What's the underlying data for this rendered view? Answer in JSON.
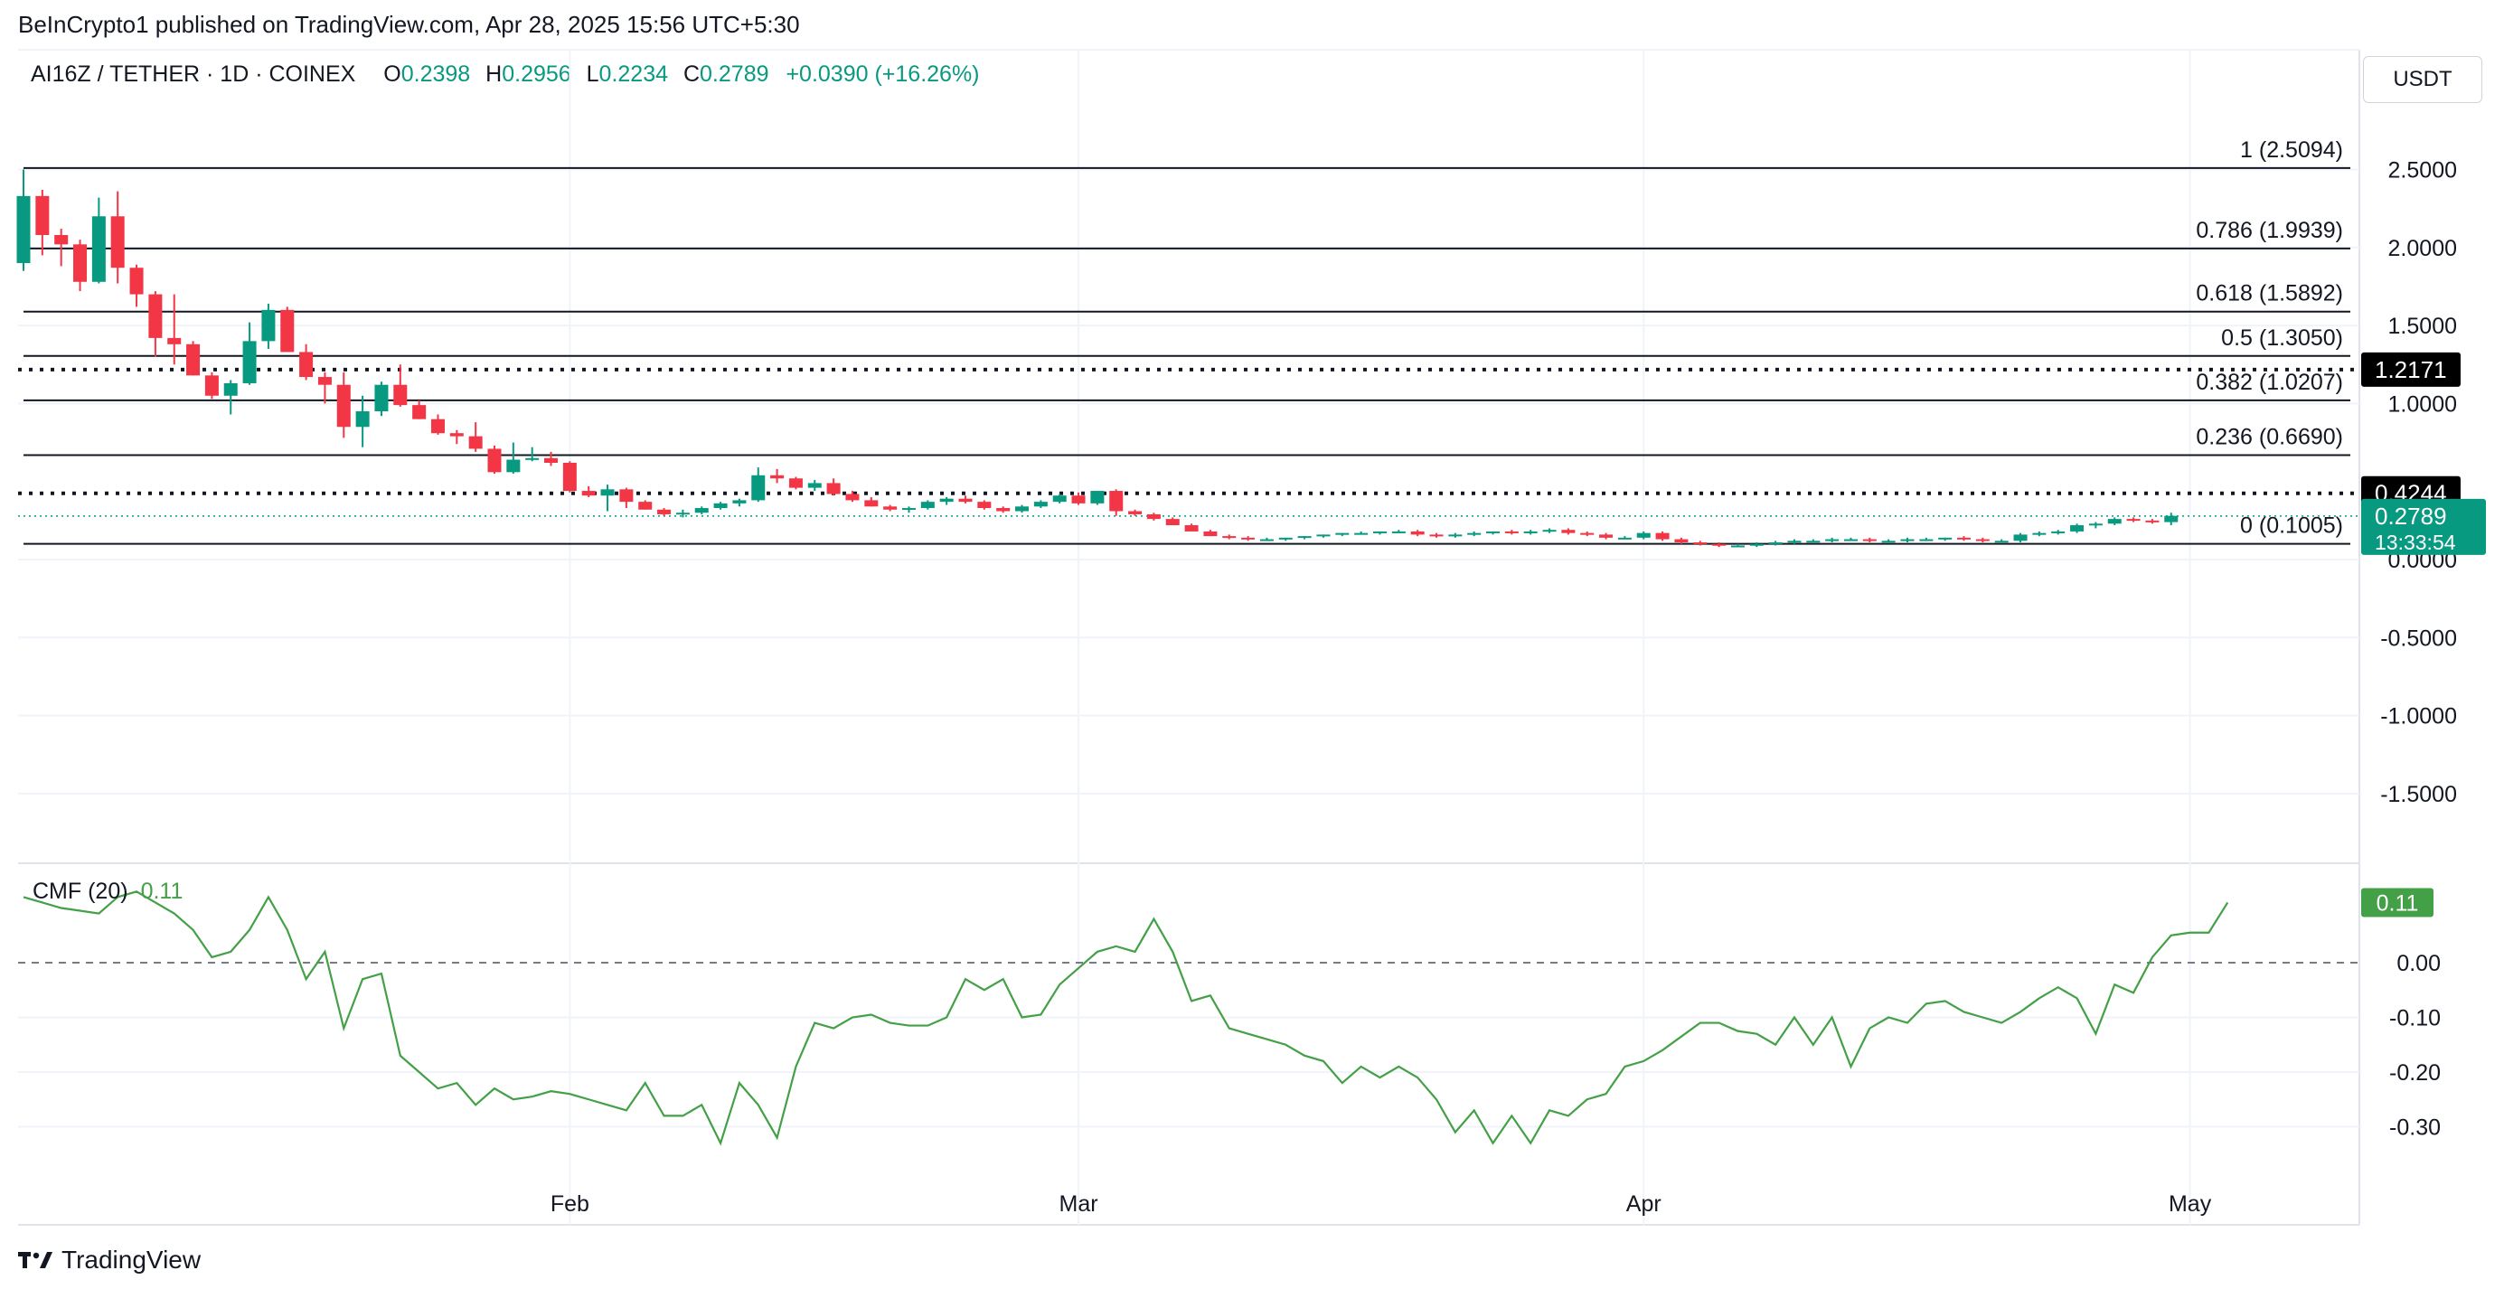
{
  "header": {
    "published": "BeInCrypto1 published on TradingView.com, Apr 28, 2025 15:56 UTC+5:30"
  },
  "legend": {
    "symbol": "AI16Z / TETHER · 1D · COINEX",
    "open_label": "O",
    "open": "0.2398",
    "high_label": "H",
    "high": "0.2956",
    "low_label": "L",
    "low": "0.2234",
    "close_label": "C",
    "close": "0.2789",
    "change": "+0.0390 (+16.26%)"
  },
  "currency_button": "USDT",
  "colors": {
    "up": "#089981",
    "down": "#f23645",
    "cmf_line": "#43a047",
    "fib": "#131722"
  },
  "chart_data": [
    {
      "type": "candlestick",
      "title": "AI16Z / TETHER · 1D · COINEX",
      "ylim": [
        -1.9,
        2.9
      ],
      "y_ticks": [
        "2.5000",
        "2.0000",
        "1.5000",
        "1.0000",
        "0.0000",
        "-0.5000",
        "-1.0000",
        "-1.5000"
      ],
      "y_tick_values": [
        2.5,
        2.0,
        1.5,
        1.0,
        0.0,
        -0.5,
        -1.0,
        -1.5
      ],
      "x_ticks": [
        "Feb",
        "Mar",
        "Apr",
        "May"
      ],
      "x_tick_index": [
        29,
        56,
        86,
        115
      ],
      "candle_count": 116,
      "candles": [
        [
          1.9,
          2.5,
          1.85,
          2.33
        ],
        [
          2.33,
          2.37,
          1.95,
          2.08
        ],
        [
          2.08,
          2.12,
          1.88,
          2.02
        ],
        [
          2.02,
          2.05,
          1.72,
          1.78
        ],
        [
          1.78,
          2.32,
          1.77,
          2.2
        ],
        [
          2.2,
          2.36,
          1.77,
          1.87
        ],
        [
          1.87,
          1.89,
          1.62,
          1.7
        ],
        [
          1.7,
          1.72,
          1.3,
          1.42
        ],
        [
          1.42,
          1.7,
          1.25,
          1.38
        ],
        [
          1.38,
          1.4,
          1.18,
          1.18
        ],
        [
          1.18,
          1.2,
          1.03,
          1.05
        ],
        [
          1.05,
          1.15,
          0.93,
          1.13
        ],
        [
          1.13,
          1.52,
          1.12,
          1.4
        ],
        [
          1.4,
          1.64,
          1.35,
          1.6
        ],
        [
          1.6,
          1.62,
          1.33,
          1.33
        ],
        [
          1.33,
          1.38,
          1.15,
          1.17
        ],
        [
          1.17,
          1.2,
          1.0,
          1.12
        ],
        [
          1.12,
          1.2,
          0.78,
          0.85
        ],
        [
          0.85,
          1.05,
          0.72,
          0.95
        ],
        [
          0.95,
          1.14,
          0.92,
          1.12
        ],
        [
          1.12,
          1.25,
          0.98,
          0.99
        ],
        [
          0.99,
          1.02,
          0.9,
          0.9
        ],
        [
          0.9,
          0.93,
          0.8,
          0.81
        ],
        [
          0.81,
          0.83,
          0.74,
          0.79
        ],
        [
          0.79,
          0.88,
          0.69,
          0.71
        ],
        [
          0.71,
          0.73,
          0.55,
          0.56
        ],
        [
          0.56,
          0.75,
          0.55,
          0.64
        ],
        [
          0.64,
          0.72,
          0.63,
          0.65
        ],
        [
          0.65,
          0.69,
          0.6,
          0.62
        ],
        [
          0.62,
          0.63,
          0.43,
          0.44
        ],
        [
          0.44,
          0.47,
          0.4,
          0.41
        ],
        [
          0.41,
          0.48,
          0.31,
          0.45
        ],
        [
          0.45,
          0.46,
          0.33,
          0.37
        ],
        [
          0.37,
          0.38,
          0.32,
          0.32
        ],
        [
          0.32,
          0.33,
          0.28,
          0.29
        ],
        [
          0.29,
          0.32,
          0.27,
          0.3
        ],
        [
          0.3,
          0.34,
          0.29,
          0.33
        ],
        [
          0.33,
          0.37,
          0.32,
          0.36
        ],
        [
          0.36,
          0.39,
          0.34,
          0.38
        ],
        [
          0.38,
          0.59,
          0.37,
          0.54
        ],
        [
          0.54,
          0.58,
          0.49,
          0.52
        ],
        [
          0.52,
          0.53,
          0.45,
          0.46
        ],
        [
          0.46,
          0.51,
          0.44,
          0.49
        ],
        [
          0.49,
          0.52,
          0.41,
          0.42
        ],
        [
          0.42,
          0.44,
          0.37,
          0.38
        ],
        [
          0.38,
          0.4,
          0.34,
          0.34
        ],
        [
          0.34,
          0.35,
          0.31,
          0.32
        ],
        [
          0.32,
          0.34,
          0.3,
          0.33
        ],
        [
          0.33,
          0.38,
          0.32,
          0.37
        ],
        [
          0.37,
          0.4,
          0.35,
          0.39
        ],
        [
          0.39,
          0.41,
          0.36,
          0.37
        ],
        [
          0.37,
          0.38,
          0.32,
          0.33
        ],
        [
          0.33,
          0.34,
          0.3,
          0.31
        ],
        [
          0.31,
          0.35,
          0.3,
          0.34
        ],
        [
          0.34,
          0.38,
          0.33,
          0.37
        ],
        [
          0.37,
          0.42,
          0.36,
          0.41
        ],
        [
          0.41,
          0.43,
          0.35,
          0.36
        ],
        [
          0.36,
          0.44,
          0.35,
          0.44
        ],
        [
          0.44,
          0.45,
          0.28,
          0.31
        ],
        [
          0.31,
          0.32,
          0.28,
          0.29
        ],
        [
          0.29,
          0.3,
          0.25,
          0.26
        ],
        [
          0.26,
          0.27,
          0.22,
          0.22
        ],
        [
          0.22,
          0.23,
          0.18,
          0.18
        ],
        [
          0.18,
          0.19,
          0.15,
          0.15
        ],
        [
          0.15,
          0.16,
          0.13,
          0.14
        ],
        [
          0.14,
          0.15,
          0.12,
          0.13
        ],
        [
          0.13,
          0.14,
          0.12,
          0.13
        ],
        [
          0.13,
          0.14,
          0.12,
          0.14
        ],
        [
          0.14,
          0.15,
          0.13,
          0.15
        ],
        [
          0.15,
          0.16,
          0.14,
          0.16
        ],
        [
          0.16,
          0.17,
          0.15,
          0.17
        ],
        [
          0.17,
          0.18,
          0.16,
          0.17
        ],
        [
          0.17,
          0.18,
          0.16,
          0.18
        ],
        [
          0.18,
          0.19,
          0.17,
          0.18
        ],
        [
          0.18,
          0.19,
          0.15,
          0.16
        ],
        [
          0.16,
          0.17,
          0.14,
          0.15
        ],
        [
          0.15,
          0.17,
          0.14,
          0.16
        ],
        [
          0.16,
          0.18,
          0.15,
          0.17
        ],
        [
          0.17,
          0.18,
          0.16,
          0.18
        ],
        [
          0.18,
          0.19,
          0.16,
          0.17
        ],
        [
          0.17,
          0.19,
          0.16,
          0.18
        ],
        [
          0.18,
          0.2,
          0.17,
          0.19
        ],
        [
          0.19,
          0.2,
          0.16,
          0.17
        ],
        [
          0.17,
          0.18,
          0.15,
          0.16
        ],
        [
          0.16,
          0.17,
          0.13,
          0.14
        ],
        [
          0.14,
          0.15,
          0.13,
          0.14
        ],
        [
          0.14,
          0.18,
          0.13,
          0.17
        ],
        [
          0.17,
          0.18,
          0.12,
          0.13
        ],
        [
          0.13,
          0.14,
          0.1,
          0.11
        ],
        [
          0.11,
          0.12,
          0.09,
          0.1
        ],
        [
          0.1,
          0.11,
          0.08,
          0.09
        ],
        [
          0.09,
          0.1,
          0.08,
          0.09
        ],
        [
          0.09,
          0.11,
          0.08,
          0.1
        ],
        [
          0.1,
          0.12,
          0.09,
          0.11
        ],
        [
          0.11,
          0.13,
          0.1,
          0.12
        ],
        [
          0.12,
          0.13,
          0.11,
          0.12
        ],
        [
          0.12,
          0.14,
          0.11,
          0.13
        ],
        [
          0.13,
          0.14,
          0.12,
          0.13
        ],
        [
          0.13,
          0.14,
          0.11,
          0.12
        ],
        [
          0.12,
          0.13,
          0.11,
          0.12
        ],
        [
          0.12,
          0.14,
          0.11,
          0.13
        ],
        [
          0.13,
          0.14,
          0.12,
          0.13
        ],
        [
          0.13,
          0.14,
          0.12,
          0.14
        ],
        [
          0.14,
          0.15,
          0.12,
          0.13
        ],
        [
          0.13,
          0.14,
          0.11,
          0.12
        ],
        [
          0.12,
          0.13,
          0.11,
          0.12
        ],
        [
          0.12,
          0.17,
          0.11,
          0.16
        ],
        [
          0.16,
          0.18,
          0.15,
          0.17
        ],
        [
          0.17,
          0.19,
          0.16,
          0.18
        ],
        [
          0.18,
          0.23,
          0.17,
          0.22
        ],
        [
          0.22,
          0.24,
          0.2,
          0.23
        ],
        [
          0.23,
          0.27,
          0.22,
          0.26
        ],
        [
          0.26,
          0.27,
          0.24,
          0.25
        ],
        [
          0.25,
          0.26,
          0.23,
          0.24
        ],
        [
          0.24,
          0.3,
          0.22,
          0.28
        ]
      ],
      "fib_levels": [
        {
          "label": "1 (2.5094)",
          "value": 2.5094
        },
        {
          "label": "0.786 (1.9939)",
          "value": 1.9939
        },
        {
          "label": "0.618 (1.5892)",
          "value": 1.5892
        },
        {
          "label": "0.5 (1.3050)",
          "value": 1.305
        },
        {
          "label": "0.382 (1.0207)",
          "value": 1.0207
        },
        {
          "label": "0.236 (0.6690)",
          "value": 0.669
        },
        {
          "label": "0 (0.1005)",
          "value": 0.1005
        }
      ],
      "dotted_levels": [
        {
          "label": "1.2171",
          "value": 1.2171
        },
        {
          "label": "0.4244",
          "value": 0.4244
        }
      ],
      "last_price": {
        "label": "0.2789",
        "value": 0.2789,
        "countdown": "13:33:54"
      }
    },
    {
      "type": "line",
      "title": "CMF (20)",
      "last_value": "0.11",
      "ylim": [
        -0.38,
        0.15
      ],
      "y_ticks": [
        "0.00",
        "-0.10",
        "-0.20",
        "-0.30"
      ],
      "y_tick_values": [
        0,
        -0.1,
        -0.2,
        -0.3
      ],
      "zero_line": true,
      "values": [
        0.12,
        0.11,
        0.1,
        0.095,
        0.09,
        0.12,
        0.13,
        0.11,
        0.09,
        0.06,
        0.01,
        0.02,
        0.06,
        0.12,
        0.06,
        -0.03,
        0.02,
        -0.12,
        -0.03,
        -0.02,
        -0.17,
        -0.2,
        -0.23,
        -0.22,
        -0.26,
        -0.23,
        -0.25,
        -0.245,
        -0.235,
        -0.24,
        -0.25,
        -0.26,
        -0.27,
        -0.22,
        -0.28,
        -0.28,
        -0.26,
        -0.33,
        -0.22,
        -0.26,
        -0.32,
        -0.19,
        -0.11,
        -0.12,
        -0.1,
        -0.095,
        -0.11,
        -0.115,
        -0.115,
        -0.1,
        -0.03,
        -0.05,
        -0.03,
        -0.1,
        -0.095,
        -0.04,
        -0.01,
        0.02,
        0.03,
        0.02,
        0.08,
        0.02,
        -0.07,
        -0.06,
        -0.12,
        -0.13,
        -0.14,
        -0.15,
        -0.17,
        -0.18,
        -0.22,
        -0.19,
        -0.21,
        -0.19,
        -0.21,
        -0.25,
        -0.31,
        -0.27,
        -0.33,
        -0.28,
        -0.33,
        -0.27,
        -0.28,
        -0.25,
        -0.24,
        -0.19,
        -0.18,
        -0.16,
        -0.135,
        -0.11,
        -0.11,
        -0.125,
        -0.13,
        -0.15,
        -0.1,
        -0.15,
        -0.1,
        -0.19,
        -0.12,
        -0.1,
        -0.11,
        -0.075,
        -0.07,
        -0.09,
        -0.1,
        -0.11,
        -0.09,
        -0.065,
        -0.045,
        -0.065,
        -0.13,
        -0.04,
        -0.055,
        0.01,
        0.05,
        0.055,
        0.055,
        0.11
      ]
    }
  ],
  "brand": {
    "name": "TradingView"
  }
}
